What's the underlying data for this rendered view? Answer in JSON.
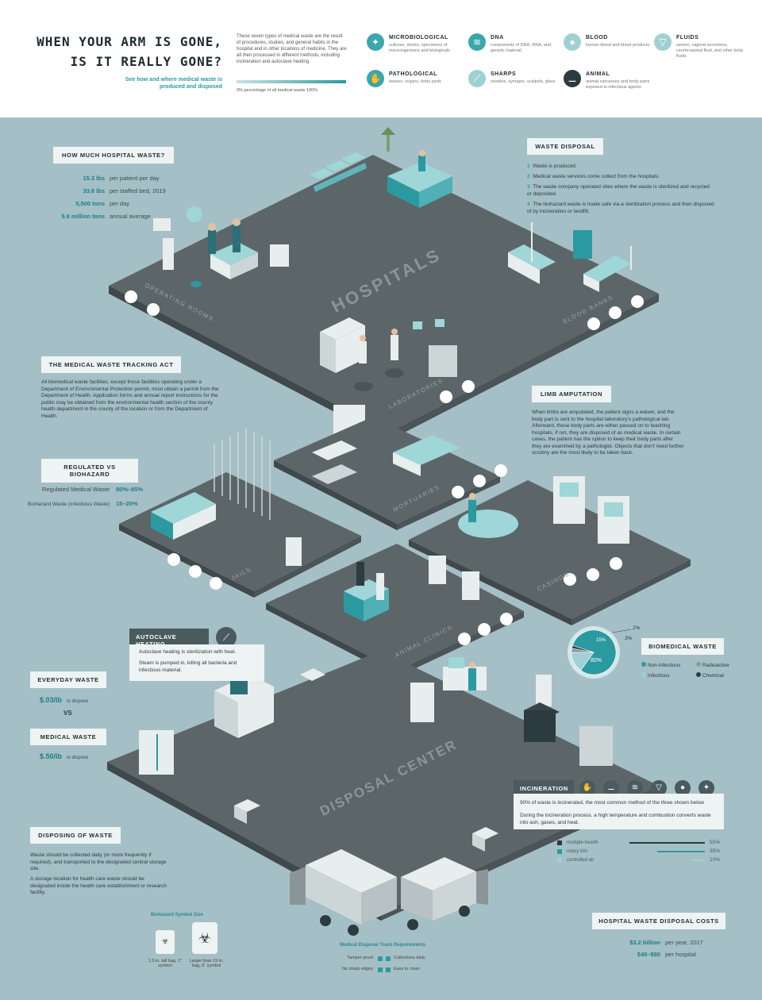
{
  "header": {
    "title_line1": "WHEN YOUR ARM IS GONE,",
    "title_line2": "IS IT REALLY GONE?",
    "subtitle": "See how and where medical waste is produced and disposed",
    "intro": "These seven types of medical waste are the result of procedures, studies, and general habits in the hospital and in other locations of medicine. They are all then processed in different methods, including incineration and autoclave heating.",
    "legend": "0%  percentage of all medical waste  100%",
    "categories": [
      {
        "name": "MICROBIOLOGICAL",
        "desc": "cultures, stocks, specimens of microorganisms and biologicals",
        "icon": "microbe-icon"
      },
      {
        "name": "DNA",
        "desc": "components of DNA, RNA, and genetic material",
        "icon": "dna-icon"
      },
      {
        "name": "BLOOD",
        "desc": "human blood and blood products",
        "icon": "blood-drop-icon"
      },
      {
        "name": "FLUIDS",
        "desc": "semen, vaginal secretions, cerebrospinal fluid, and other body fluids",
        "icon": "fluid-icon"
      },
      {
        "name": "PATHOLOGICAL",
        "desc": "tissues, organs, body parts",
        "icon": "arm-icon"
      },
      {
        "name": "SHARPS",
        "desc": "needles, syringes, scalpels, glass",
        "icon": "syringe-icon"
      },
      {
        "name": "ANIMAL",
        "desc": "animal carcasses and body parts exposed to infectious agents",
        "icon": "bone-icon"
      }
    ]
  },
  "hospital_waste": {
    "heading": "HOW MUCH HOSPITAL WASTE?",
    "stats": [
      {
        "value": "15.3 lbs",
        "label": "per patient per day"
      },
      {
        "value": "33.8 lbs",
        "label": "per staffed bed, 2019"
      },
      {
        "value": "5,500 tons",
        "label": "per day"
      },
      {
        "value": "5.9 million tons",
        "label": "annual average"
      }
    ]
  },
  "waste_disposal": {
    "heading": "WASTE DISPOSAL",
    "steps": [
      {
        "n": "1",
        "text": "Waste is produced."
      },
      {
        "n": "2",
        "text": "Medical waste services come collect from the hospitals."
      },
      {
        "n": "3",
        "text": "The waste company operated sites where the waste is sterilized and recycled or deposited."
      },
      {
        "n": "4",
        "text": "The biohazard waste is made safe via a sterilization process and then disposed of by incineration or landfill."
      }
    ]
  },
  "tracking_act": {
    "heading": "THE MEDICAL WASTE TRACKING ACT",
    "text": "All biomedical waste facilities, except those facilities operating under a Department of Environmental Protection permit, must obtain a permit from the Department of Health. Application forms and annual report instructions for the public may be obtained from the environmental health section of the county health department in the county of the location or from the Department of Health."
  },
  "regulated": {
    "heading": "REGULATED VS BIOHAZARD",
    "rows": [
      {
        "label": "Regulated Medical Waste",
        "value": "80%–85%"
      },
      {
        "label": "Biohazard Waste (Infectious Waste)",
        "value": "15–20%"
      }
    ]
  },
  "limb": {
    "heading": "LIMB AMPUTATION",
    "text": "When limbs are amputated, the patient signs a waiver, and the body part is sent to the hospital laboratory's pathological lab. Afterward, these body parts are either passed on to teaching hospitals, if not, they are disposed of as medical waste. In certain cases, the patient has the option to keep their body parts after they are examined by a pathologist. Objects that don't need further scrutiny are the most likely to be taken back."
  },
  "autoclave": {
    "heading": "AUTOCLAVE HEATING",
    "line1": "Autoclave heating is sterilization with heat.",
    "line2": "Steam is pumped in, killing all bacteria and infectious material."
  },
  "cost_compare": {
    "everyday_heading": "EVERYDAY WASTE",
    "everyday_value": "$.03/lb",
    "everyday_label": "to dispose",
    "vs": "VS",
    "medical_heading": "MEDICAL WASTE",
    "medical_value": "$.50/lb",
    "medical_label": "to dispose"
  },
  "disposing": {
    "heading": "DISPOSING OF WASTE",
    "p1": "Waste should be collected daily (or more frequently if required), and transported to the designated central storage site.",
    "p2": "A storage location for health care waste should be designated inside the health care establishment or research facility."
  },
  "biomedical_waste": {
    "heading": "BIOMEDICAL WASTE",
    "pie_labels": [
      "80%",
      "15%",
      "3%",
      "2%"
    ],
    "legend": [
      "Non-infectious",
      "Radioactive",
      "Infectious",
      "Chemical"
    ],
    "colors": [
      "#2b9aa0",
      "#8f9b9e",
      "#9fd1d4",
      "#2c3b40"
    ]
  },
  "chart_data": {
    "type": "pie",
    "categories": [
      "Non-infectious",
      "Infectious",
      "Radioactive",
      "Chemical"
    ],
    "values": [
      80,
      15,
      3,
      2
    ],
    "title": "BIOMEDICAL WASTE"
  },
  "incineration": {
    "heading": "INCINERATION",
    "text1": "90% of waste is incinerated, the most common method of the three shown below",
    "text2": "During the incineration process, a high temperature and combustion converts waste into ash, gases, and heat.",
    "methods": [
      {
        "label": "multiple-hearth",
        "value": "55%"
      },
      {
        "label": "rotary kiln",
        "value": "35%"
      },
      {
        "label": "controlled air",
        "value": "10%"
      }
    ]
  },
  "costs": {
    "heading": "HOSPITAL WASTE DISPOSAL COSTS",
    "rows": [
      {
        "value": "$3.2 billion",
        "label": "per year, 2017"
      },
      {
        "value": "$40–$80",
        "label": "per hospital"
      }
    ]
  },
  "symbols": {
    "heading": "Biohazard Symbol Size",
    "left": "1.5 in. tall bag, 1\" symbol",
    "right": "Larger than 19 in. bag, 6\" symbol"
  },
  "truck": {
    "heading": "Medical Disposal Truck Requirements",
    "items": [
      "Tamper-proof",
      "Collections daily",
      "No sharp edges",
      "Easy to clean"
    ]
  },
  "floors": {
    "hospitals": "HOSPITALS",
    "operating": "OPERATING ROOMS",
    "blood_banks": "BLOOD BANKS",
    "laboratories": "LABORATORIES",
    "mortuaries": "MORTUARIES",
    "jails": "JAILS",
    "casinos": "CASINOS",
    "animal_clinics": "ANIMAL CLINICS",
    "disposal_center": "DISPOSAL CENTER"
  }
}
